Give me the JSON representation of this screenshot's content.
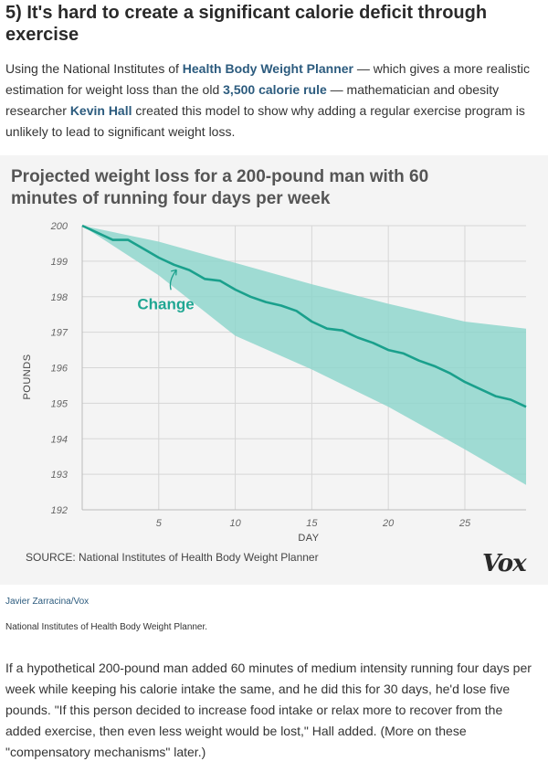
{
  "article": {
    "heading": "5) It's hard to create a significant calorie deficit through exercise",
    "intro": {
      "t1": "Using the National Institutes of ",
      "link1": "Health Body Weight Planner",
      "t2": " — which gives a more realistic estimation for weight loss than the old ",
      "link2": "3,500 calorie rule",
      "t3": " — mathematician and obesity researcher ",
      "link3": "Kevin Hall",
      "t4": " created this model to show why adding a regular exercise program is unlikely to lead to significant weight loss."
    },
    "body": "If a hypothetical 200-pound man added 60 minutes of medium intensity running four days per week while keeping his calorie intake the same, and he did this for 30 days, he'd lose five pounds. \"If this person decided to increase food intake or relax more to recover from the added exercise, then even less weight would be lost,\" Hall added. (More on these \"compensatory mechanisms\" later.)"
  },
  "figure": {
    "source": "SOURCE: National Institutes of Health Body Weight Planner",
    "logo": "Vox",
    "credit": "Javier Zarracina/Vox",
    "caption": "National Institutes of Health Body Weight Planner."
  },
  "colors": {
    "band": "#8fd6cc",
    "line": "#1aa08c",
    "grid": "#d6d6d6",
    "link": "#2c5b7e"
  },
  "chart_data": {
    "type": "area",
    "title": "Projected weight loss for a 200-pound man with 60 minutes of running four days per week",
    "xlabel": "DAY",
    "ylabel": "POUNDS",
    "xlim": [
      0,
      29
    ],
    "ylim": [
      192,
      200
    ],
    "xticks": [
      5,
      10,
      15,
      20,
      25
    ],
    "yticks": [
      192,
      193,
      194,
      195,
      196,
      197,
      198,
      199,
      200
    ],
    "grid": true,
    "annotation": "Change",
    "series": [
      {
        "name": "Change",
        "x": [
          0,
          1,
          2,
          3,
          4,
          5,
          6,
          7,
          8,
          9,
          10,
          11,
          12,
          13,
          14,
          15,
          16,
          17,
          18,
          19,
          20,
          21,
          22,
          23,
          24,
          25,
          26,
          27,
          28,
          29
        ],
        "values": [
          200,
          199.8,
          199.6,
          199.6,
          199.35,
          199.1,
          198.9,
          198.75,
          198.5,
          198.45,
          198.2,
          198.0,
          197.85,
          197.75,
          197.6,
          197.3,
          197.1,
          197.05,
          196.85,
          196.7,
          196.5,
          196.4,
          196.2,
          196.05,
          195.85,
          195.6,
          195.4,
          195.2,
          195.1,
          194.9
        ]
      }
    ],
    "band": {
      "x": [
        0,
        5,
        10,
        15,
        20,
        25,
        29
      ],
      "upper": [
        200,
        199.55,
        198.95,
        198.35,
        197.8,
        197.3,
        197.1
      ],
      "lower": [
        200,
        198.6,
        196.9,
        195.95,
        194.9,
        193.7,
        192.7
      ]
    }
  }
}
